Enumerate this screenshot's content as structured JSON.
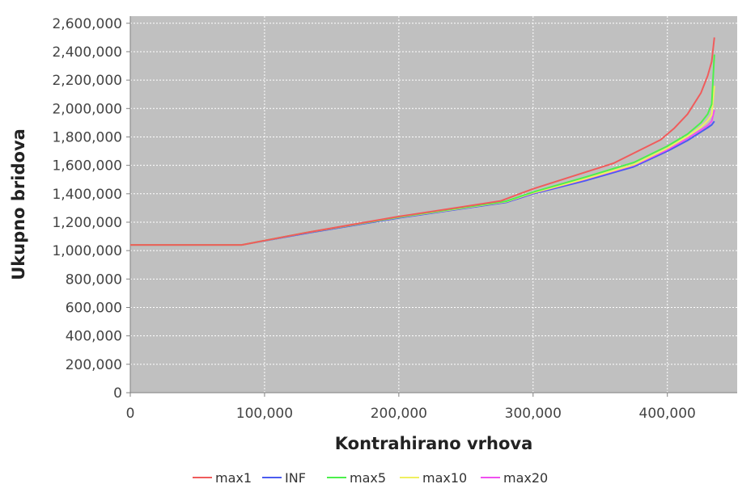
{
  "chart_data": {
    "type": "line",
    "title": "",
    "xlabel": "Kontrahirano vrhova",
    "ylabel": "Ukupno bridova",
    "xlim": [
      0,
      452000
    ],
    "ylim": [
      0,
      2650000
    ],
    "x_ticks": [
      0,
      100000,
      200000,
      300000,
      400000
    ],
    "x_tick_labels": [
      "0",
      "100,000",
      "200,000",
      "300,000",
      "400,000"
    ],
    "y_ticks": [
      0,
      200000,
      400000,
      600000,
      800000,
      1000000,
      1200000,
      1400000,
      1600000,
      1800000,
      2000000,
      2200000,
      2400000,
      2600000
    ],
    "y_tick_labels": [
      "0",
      "200,000",
      "400,000",
      "600,000",
      "800,000",
      "1,000,000",
      "1,200,000",
      "1,400,000",
      "1,600,000",
      "1,800,000",
      "2,000,000",
      "2,200,000",
      "2,400,000",
      "2,600,000"
    ],
    "grid": true,
    "background": "#c0c0c0",
    "legend_position": "bottom",
    "series": [
      {
        "name": "INF",
        "color": "#4b5cf0",
        "x": [
          0,
          83000,
          130000,
          200000,
          240000,
          280000,
          300000,
          340000,
          375000,
          400000,
          415000,
          425000,
          430000,
          433000,
          435000
        ],
        "y": [
          1040000,
          1040000,
          1120000,
          1230000,
          1285000,
          1340000,
          1400000,
          1495000,
          1590000,
          1700000,
          1775000,
          1835000,
          1865000,
          1885000,
          1910000
        ]
      },
      {
        "name": "max20",
        "color": "#f050f0",
        "x": [
          0,
          83000,
          130000,
          200000,
          240000,
          280000,
          300000,
          340000,
          375000,
          400000,
          415000,
          425000,
          430000,
          433000,
          435000
        ],
        "y": [
          1040000,
          1040000,
          1125000,
          1235000,
          1290000,
          1345000,
          1405000,
          1505000,
          1600000,
          1710000,
          1790000,
          1850000,
          1880000,
          1910000,
          1990000
        ]
      },
      {
        "name": "max10",
        "color": "#f0f060",
        "x": [
          0,
          83000,
          130000,
          200000,
          240000,
          280000,
          300000,
          340000,
          375000,
          400000,
          415000,
          425000,
          430000,
          433000,
          435000
        ],
        "y": [
          1040000,
          1040000,
          1125000,
          1235000,
          1290000,
          1345000,
          1407000,
          1508000,
          1605000,
          1720000,
          1805000,
          1870000,
          1915000,
          1955000,
          2160000
        ]
      },
      {
        "name": "max5",
        "color": "#4cf04c",
        "x": [
          0,
          83000,
          130000,
          200000,
          240000,
          280000,
          300000,
          340000,
          375000,
          400000,
          415000,
          425000,
          430000,
          433000,
          435000
        ],
        "y": [
          1040000,
          1040000,
          1125000,
          1237000,
          1292000,
          1348000,
          1412000,
          1520000,
          1620000,
          1735000,
          1820000,
          1900000,
          1960000,
          2030000,
          2380000
        ]
      },
      {
        "name": "max1",
        "color": "#f05c5c",
        "x": [
          0,
          83000,
          130000,
          200000,
          240000,
          276000,
          300000,
          330000,
          360000,
          395000,
          405000,
          415000,
          425000,
          430000,
          433000,
          435000
        ],
        "y": [
          1040000,
          1040000,
          1125000,
          1240000,
          1297000,
          1350000,
          1435000,
          1525000,
          1615000,
          1780000,
          1860000,
          1960000,
          2110000,
          2230000,
          2330000,
          2500000
        ]
      }
    ],
    "legend": [
      {
        "name": "max1",
        "color": "#f05c5c"
      },
      {
        "name": "INF",
        "color": "#4b5cf0"
      },
      {
        "name": "max5",
        "color": "#4cf04c"
      },
      {
        "name": "max10",
        "color": "#f0f060"
      },
      {
        "name": "max20",
        "color": "#f050f0"
      }
    ]
  }
}
